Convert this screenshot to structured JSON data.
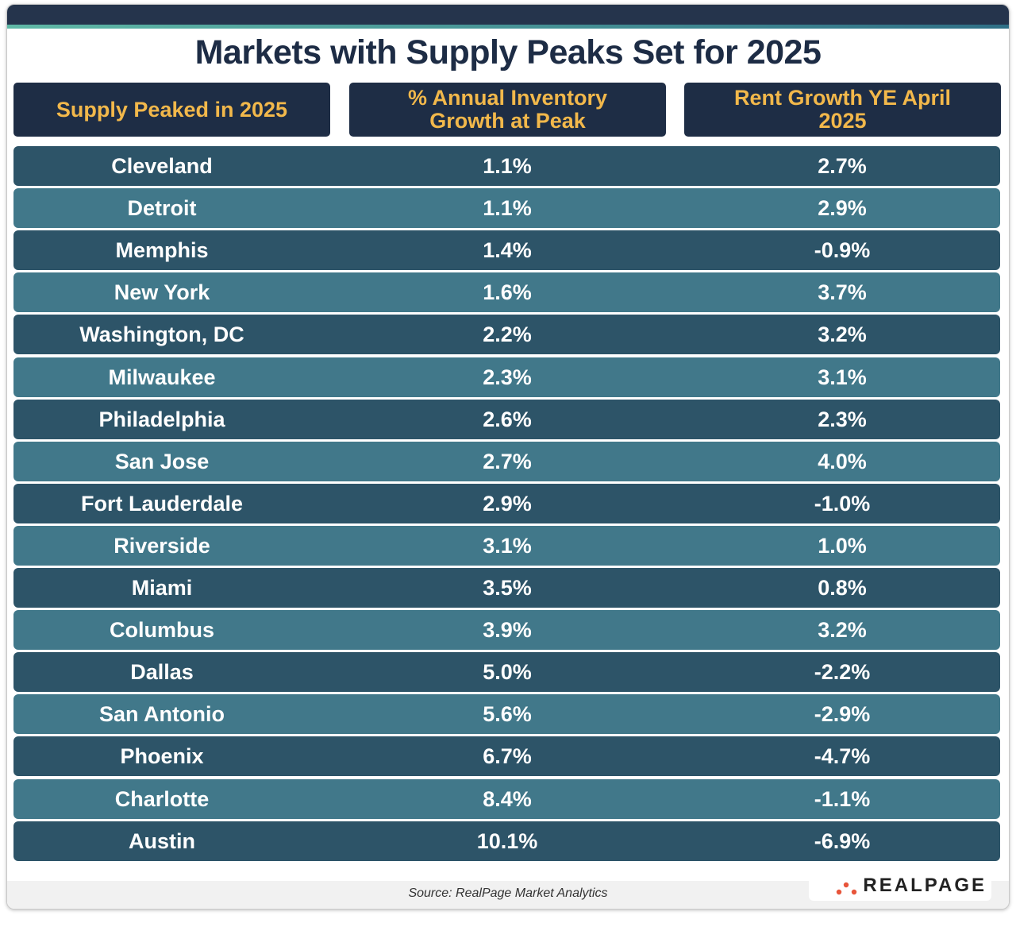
{
  "title": "Markets with Supply Peaks Set for 2025",
  "table": {
    "header": [
      "Supply Peaked in 2025",
      "% Annual Inventory Growth at Peak",
      "Rent Growth YE April 2025"
    ],
    "rows": [
      [
        "Cleveland",
        "1.1%",
        "2.7%"
      ],
      [
        "Detroit",
        "1.1%",
        "2.9%"
      ],
      [
        "Memphis",
        "1.4%",
        "-0.9%"
      ],
      [
        "New York",
        "1.6%",
        "3.7%"
      ],
      [
        "Washington, DC",
        "2.2%",
        "3.2%"
      ],
      [
        "Milwaukee",
        "2.3%",
        "3.1%"
      ],
      [
        "Philadelphia",
        "2.6%",
        "2.3%"
      ],
      [
        "San Jose",
        "2.7%",
        "4.0%"
      ],
      [
        "Fort Lauderdale",
        "2.9%",
        "-1.0%"
      ],
      [
        "Riverside",
        "3.1%",
        "1.0%"
      ],
      [
        "Miami",
        "3.5%",
        "0.8%"
      ],
      [
        "Columbus",
        "3.9%",
        "3.2%"
      ],
      [
        "Dallas",
        "5.0%",
        "-2.2%"
      ],
      [
        "San Antonio",
        "5.6%",
        "-2.9%"
      ],
      [
        "Phoenix",
        "6.7%",
        "-4.7%"
      ],
      [
        "Charlotte",
        "8.4%",
        "-1.1%"
      ],
      [
        "Austin",
        "10.1%",
        "-6.9%"
      ]
    ]
  },
  "source": "Source: RealPage Market Analytics",
  "logo": "REALPAGE"
}
